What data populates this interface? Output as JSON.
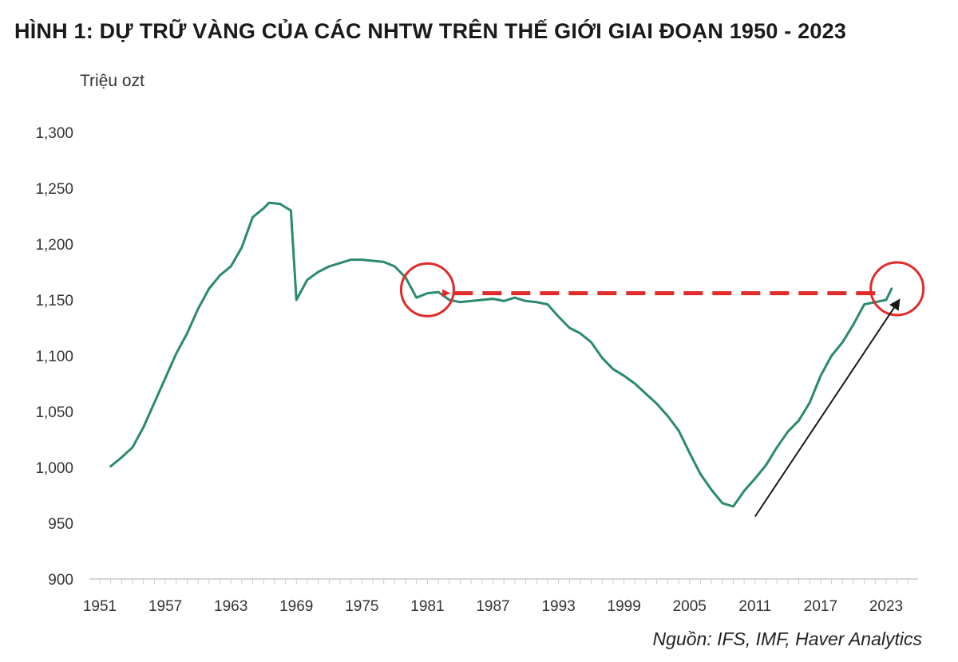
{
  "title": "HÌNH 1: DỰ TRỮ VÀNG CỦA CÁC NHTW TRÊN THẾ GIỚI GIAI ĐOẠN 1950 - 2023",
  "source": "Nguồn: IFS, IMF, Haver Analytics",
  "colors": {
    "line": "#2a8a6e",
    "highlight": "#e02b2b",
    "arrow": "#1a1a1a",
    "axis": "#cccccc"
  },
  "chart_data": {
    "type": "line",
    "ylabel": "Triệu ozt",
    "xlabel": "",
    "ylim": [
      900,
      1300
    ],
    "xlim": [
      1951,
      2025
    ],
    "y_ticks": [
      "900",
      "950",
      "1,000",
      "1,050",
      "1,100",
      "1,150",
      "1,200",
      "1,250",
      "1,300"
    ],
    "y_tick_values": [
      900,
      950,
      1000,
      1050,
      1100,
      1150,
      1200,
      1250,
      1300
    ],
    "x_ticks": [
      "1951",
      "1957",
      "1963",
      "1969",
      "1975",
      "1981",
      "1987",
      "1993",
      "1999",
      "2005",
      "2011",
      "2017",
      "2023"
    ],
    "x_tick_values": [
      1951,
      1957,
      1963,
      1969,
      1975,
      1981,
      1987,
      1993,
      1999,
      2005,
      2011,
      2017,
      2023
    ],
    "grid": false,
    "series": [
      {
        "x": [
          1952,
          1953,
          1954,
          1955,
          1956,
          1957,
          1958,
          1959,
          1960,
          1961,
          1962,
          1963,
          1964,
          1965,
          1966,
          1966.5,
          1967.5,
          1968.5,
          1968.8,
          1969,
          1970,
          1971,
          1972,
          1973,
          1974,
          1975,
          1976,
          1977,
          1978,
          1979,
          1980,
          1981,
          1982,
          1983,
          1984,
          1985,
          1986,
          1987,
          1988,
          1989,
          1990,
          1991,
          1992,
          1993,
          1994,
          1995,
          1996,
          1997,
          1998,
          1999,
          2000,
          2001,
          2002,
          2003,
          2004,
          2005,
          2006,
          2007,
          2008,
          2009,
          2010,
          2011,
          2012,
          2013,
          2014,
          2015,
          2016,
          2017,
          2018,
          2019,
          2020,
          2021,
          2022,
          2023,
          2023.5
        ],
        "y": [
          1001,
          1009,
          1018,
          1036,
          1058,
          1080,
          1102,
          1120,
          1142,
          1160,
          1172,
          1180,
          1197,
          1224,
          1232,
          1237,
          1236,
          1230,
          1182,
          1150,
          1168,
          1175,
          1180,
          1183,
          1186,
          1186,
          1185,
          1184,
          1180,
          1170,
          1152,
          1156,
          1157,
          1150,
          1148,
          1149,
          1150,
          1151,
          1149,
          1152,
          1149,
          1148,
          1146,
          1135,
          1125,
          1120,
          1112,
          1098,
          1088,
          1082,
          1075,
          1066,
          1057,
          1046,
          1033,
          1013,
          994,
          980,
          968,
          965,
          979,
          990,
          1002,
          1018,
          1032,
          1042,
          1058,
          1082,
          1100,
          1112,
          1128,
          1146,
          1148,
          1150,
          1160
        ]
      }
    ],
    "annotations": [
      {
        "type": "circle",
        "x": 1981,
        "y": 1159
      },
      {
        "type": "circle",
        "x": 2024,
        "y": 1160
      },
      {
        "type": "dashed-arrow",
        "from": [
          2022,
          1156
        ],
        "to": [
          1982,
          1156
        ]
      },
      {
        "type": "arrow",
        "from": [
          2011,
          956
        ],
        "to": [
          2024.2,
          1150
        ]
      }
    ]
  }
}
